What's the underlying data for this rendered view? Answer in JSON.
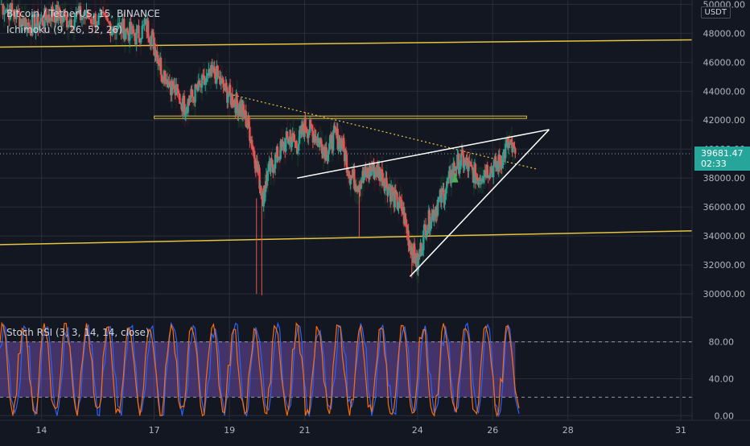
{
  "header": {
    "title": "Bitcoin / TetherUS, 15, BINANCE",
    "indicator": "Ichimoku (9, 26, 52, 26)",
    "oscillator": "Stoch RSI (3, 3, 14, 14, close)",
    "currency": "USDT"
  },
  "last_price": {
    "value": "39681.47",
    "countdown": "02:33"
  },
  "colors": {
    "background": "#131722",
    "grid": "#2a2e39",
    "trendline_yellow": "#e4c441",
    "wedge_white": "#ffffff",
    "candle_up": "#26a69a",
    "candle_down": "#ef5350",
    "cloud_green": "#1e4a2c",
    "cloud_red": "#4a1e22",
    "k_line": "#2962ff",
    "d_line": "#ff6d00",
    "stoch_band": "#7e57c2",
    "price_tag": "#26a69a"
  },
  "chart_data": [
    {
      "type": "line",
      "title": "Bitcoin / TetherUS, 15, BINANCE",
      "x_ticks": [
        "14",
        "17",
        "19",
        "21",
        "24",
        "26",
        "28",
        "31"
      ],
      "y_ticks": [
        "30000.00",
        "32000.00",
        "34000.00",
        "36000.00",
        "38000.00",
        "40000.00",
        "42000.00",
        "44000.00",
        "46000.00",
        "48000.00",
        "50000.00"
      ],
      "ylim": [
        28500,
        50300
      ],
      "xlim": [
        12.9,
        31.3
      ],
      "grid": true,
      "series": [
        {
          "x": [
            12.9,
            13.3,
            13.7,
            14.0,
            14.3,
            14.6,
            15.0,
            15.4,
            15.8,
            16.2,
            16.5,
            16.8,
            17.0,
            17.2,
            17.5,
            17.8,
            18.0,
            18.3,
            18.6,
            18.9,
            19.1,
            19.3,
            19.5,
            19.7,
            19.9,
            20.0,
            20.2,
            20.4,
            20.6,
            20.8,
            21.0,
            21.2,
            21.4,
            21.6,
            21.8,
            22.0,
            22.2,
            22.4,
            22.6,
            22.8,
            23.0,
            23.2,
            23.4,
            23.6,
            23.8,
            24.0,
            24.2,
            24.4,
            24.6,
            24.8,
            25.0,
            25.2,
            25.4,
            25.6,
            25.8,
            26.0,
            26.2,
            26.4,
            26.6
          ],
          "values": [
            50000,
            49300,
            48500,
            48800,
            49500,
            48900,
            49200,
            49000,
            48600,
            48300,
            47800,
            48500,
            47300,
            45500,
            44200,
            43000,
            43600,
            44500,
            45300,
            44000,
            43400,
            42800,
            41700,
            39100,
            36600,
            38200,
            39200,
            40100,
            40800,
            40300,
            41600,
            41200,
            40500,
            39800,
            41000,
            40300,
            38300,
            37600,
            38200,
            38600,
            38400,
            37500,
            36500,
            35800,
            33500,
            32000,
            34500,
            35600,
            36500,
            37500,
            38900,
            39200,
            38600,
            38000,
            38600,
            38700,
            39100,
            40300,
            39681
          ]
        }
      ],
      "annotations": {
        "yellow_channel_upper": [
          [
            12.9,
            47050
          ],
          [
            31.3,
            47550
          ]
        ],
        "yellow_channel_lower": [
          [
            12.9,
            33400
          ],
          [
            31.3,
            34350
          ]
        ],
        "horizontal_resistance": 42200,
        "dotted_trendline": [
          [
            19.0,
            43800
          ],
          [
            27.2,
            38600
          ]
        ],
        "wedge_upper": [
          [
            20.8,
            38000
          ],
          [
            27.5,
            41350
          ]
        ],
        "wedge_lower": [
          [
            23.8,
            31200
          ],
          [
            27.5,
            41350
          ]
        ]
      }
    },
    {
      "type": "line",
      "title": "Stoch RSI (3, 3, 14, 14, close)",
      "y_ticks": [
        "0.00",
        "40.00",
        "80.00"
      ],
      "ylim": [
        -5,
        105
      ],
      "band": [
        20,
        80
      ],
      "series": [
        {
          "name": "K",
          "color": "#2962ff"
        },
        {
          "name": "D",
          "color": "#ff6d00"
        }
      ],
      "end_values": {
        "K": 2,
        "D": 8
      }
    }
  ]
}
